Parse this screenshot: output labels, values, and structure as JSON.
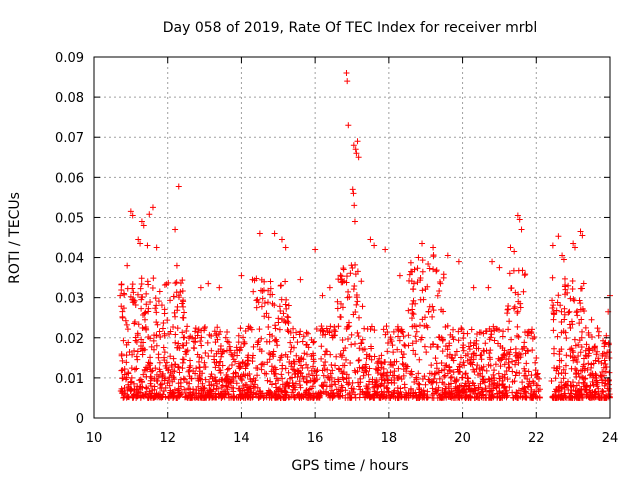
{
  "chart_data": {
    "type": "scatter",
    "title": "Day 058 of 2019, Rate Of TEC Index for receiver mrbl",
    "xlabel": "GPS time / hours",
    "ylabel": "ROTI / TECUs",
    "xlim": [
      10,
      24
    ],
    "ylim": [
      0,
      0.09
    ],
    "x_ticks": [
      10,
      12,
      14,
      16,
      18,
      20,
      22,
      24
    ],
    "x_tick_labels": [
      "10",
      "12",
      "14",
      "16",
      "18",
      "20",
      "22",
      "24"
    ],
    "y_ticks": [
      0,
      0.01,
      0.02,
      0.03,
      0.04,
      0.05,
      0.06,
      0.07,
      0.08,
      0.09
    ],
    "y_tick_labels": [
      "0",
      "0.01",
      "0.02",
      "0.03",
      "0.04",
      "0.05",
      "0.06",
      "0.07",
      "0.08",
      "0.09"
    ],
    "grid": true,
    "marker": "+",
    "color": "#ff0000",
    "data_start_hour": 10.7,
    "data_end_hour": 24.0,
    "gap_hours": [
      [
        22.1,
        22.4
      ]
    ],
    "series": [
      {
        "name": "ROTI",
        "points": [
          [
            16.85,
            0.086
          ],
          [
            16.87,
            0.084
          ],
          [
            16.9,
            0.073
          ],
          [
            17.05,
            0.068
          ],
          [
            17.1,
            0.067
          ],
          [
            17.12,
            0.066
          ],
          [
            17.15,
            0.069
          ],
          [
            17.18,
            0.065
          ],
          [
            17.02,
            0.057
          ],
          [
            17.04,
            0.056
          ],
          [
            17.06,
            0.053
          ],
          [
            17.08,
            0.049
          ],
          [
            12.3,
            0.0577
          ],
          [
            12.2,
            0.047
          ],
          [
            11.6,
            0.0525
          ],
          [
            11.0,
            0.0515
          ],
          [
            11.05,
            0.0505
          ],
          [
            11.3,
            0.049
          ],
          [
            11.35,
            0.048
          ],
          [
            11.5,
            0.0508
          ],
          [
            21.5,
            0.0505
          ],
          [
            21.55,
            0.0495
          ],
          [
            21.6,
            0.047
          ],
          [
            14.5,
            0.046
          ],
          [
            14.9,
            0.046
          ],
          [
            15.1,
            0.0445
          ],
          [
            15.2,
            0.0425
          ],
          [
            16.0,
            0.042
          ],
          [
            17.5,
            0.0445
          ],
          [
            17.6,
            0.043
          ],
          [
            17.9,
            0.042
          ],
          [
            18.9,
            0.0435
          ],
          [
            19.2,
            0.0425
          ],
          [
            19.6,
            0.0405
          ],
          [
            19.9,
            0.039
          ],
          [
            20.8,
            0.039
          ],
          [
            21.0,
            0.0375
          ],
          [
            21.3,
            0.0425
          ],
          [
            21.4,
            0.0415
          ],
          [
            22.45,
            0.043
          ],
          [
            22.6,
            0.0453
          ],
          [
            22.7,
            0.0405
          ],
          [
            22.75,
            0.0395
          ],
          [
            23.0,
            0.0435
          ],
          [
            23.05,
            0.0425
          ],
          [
            23.2,
            0.0465
          ],
          [
            23.25,
            0.0455
          ],
          [
            24.0,
            0.0305
          ],
          [
            23.95,
            0.0265
          ],
          [
            10.9,
            0.038
          ],
          [
            11.2,
            0.0445
          ],
          [
            11.25,
            0.0435
          ],
          [
            11.45,
            0.043
          ],
          [
            11.7,
            0.0425
          ],
          [
            12.25,
            0.038
          ],
          [
            12.9,
            0.0325
          ],
          [
            13.1,
            0.0335
          ],
          [
            13.4,
            0.0325
          ],
          [
            14.0,
            0.0355
          ],
          [
            14.3,
            0.0345
          ],
          [
            15.6,
            0.0345
          ],
          [
            16.2,
            0.0305
          ],
          [
            16.4,
            0.0325
          ],
          [
            16.7,
            0.0345
          ],
          [
            18.3,
            0.0355
          ],
          [
            18.6,
            0.0365
          ],
          [
            19.4,
            0.0335
          ],
          [
            20.3,
            0.0325
          ],
          [
            20.7,
            0.0325
          ],
          [
            22.9,
            0.0265
          ],
          [
            23.5,
            0.0245
          ],
          [
            23.7,
            0.0215
          ],
          [
            23.85,
            0.0185
          ],
          [
            23.9,
            0.0205
          ]
        ]
      }
    ]
  }
}
